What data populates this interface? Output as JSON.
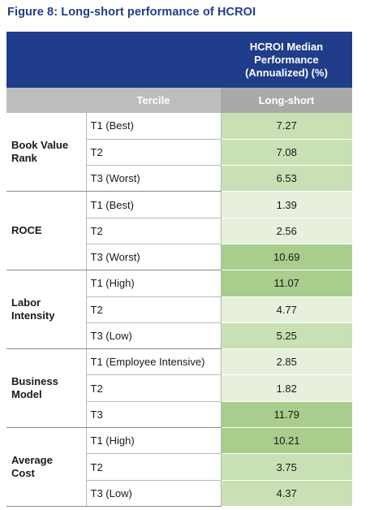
{
  "title": "Figure 8: Long-short performance of HCROI",
  "header": {
    "main": "HCROI Median\nPerformance\n(Annualized) (%)",
    "tercile_col": "Tercile",
    "value_col": "Long-short"
  },
  "colors": {
    "header_bg": "#1f3d8a",
    "subheader_bg": "#bdbdbd",
    "value_light": "#e6f0dc",
    "value_mid": "#c9e0b4",
    "value_dark": "#a8cd8c"
  },
  "groups": [
    {
      "label": "Book Value\nRank",
      "rows": [
        {
          "tercile": "T1 (Best)",
          "value": "7.27",
          "shade": "value_mid"
        },
        {
          "tercile": "T2",
          "value": "7.08",
          "shade": "value_mid"
        },
        {
          "tercile": "T3 (Worst)",
          "value": "6.53",
          "shade": "value_mid"
        }
      ]
    },
    {
      "label": "ROCE",
      "rows": [
        {
          "tercile": "T1 (Best)",
          "value": "1.39",
          "shade": "value_light"
        },
        {
          "tercile": "T2",
          "value": "2.56",
          "shade": "value_light"
        },
        {
          "tercile": "T3 (Worst)",
          "value": "10.69",
          "shade": "value_dark"
        }
      ]
    },
    {
      "label": "Labor\nIntensity",
      "rows": [
        {
          "tercile": "T1 (High)",
          "value": "11.07",
          "shade": "value_dark"
        },
        {
          "tercile": "T2",
          "value": "4.77",
          "shade": "value_light"
        },
        {
          "tercile": "T3 (Low)",
          "value": "5.25",
          "shade": "value_mid"
        }
      ]
    },
    {
      "label": "Business\nModel",
      "rows": [
        {
          "tercile": "T1 (Employee Intensive)",
          "value": "2.85",
          "shade": "value_light"
        },
        {
          "tercile": "T2",
          "value": "1.82",
          "shade": "value_light"
        },
        {
          "tercile": "T3",
          "value": "11.79",
          "shade": "value_dark"
        }
      ]
    },
    {
      "label": "Average\nCost",
      "rows": [
        {
          "tercile": "T1 (High)",
          "value": "10.21",
          "shade": "value_dark"
        },
        {
          "tercile": "T2",
          "value": "3.75",
          "shade": "value_mid"
        },
        {
          "tercile": "T3 (Low)",
          "value": "4.37",
          "shade": "value_mid"
        }
      ]
    }
  ]
}
